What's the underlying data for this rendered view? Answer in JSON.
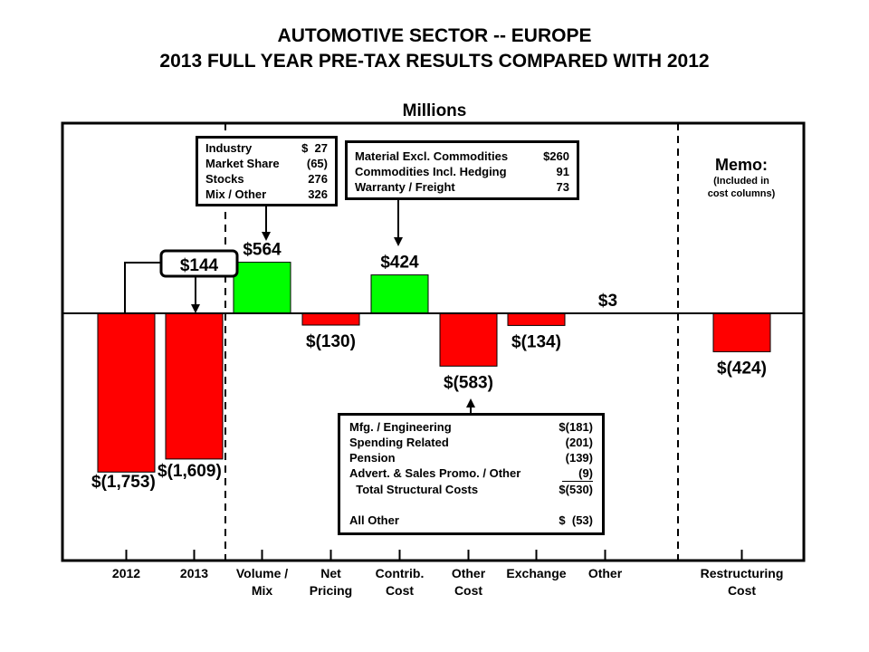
{
  "chart_data": {
    "type": "bar",
    "title": [
      "AUTOMOTIVE SECTOR -- EUROPE",
      "2013 FULL YEAR PRE-TAX RESULTS COMPARED WITH 2012"
    ],
    "ylabel": "Millions",
    "categories": [
      "2012",
      "2013",
      "Volume / Mix",
      "Net Pricing",
      "Contrib. Cost",
      "Other Cost",
      "Exchange",
      "Other",
      "Restructuring Cost"
    ],
    "category_lines": [
      [
        "2012"
      ],
      [
        "2013"
      ],
      [
        "Volume /",
        "Mix"
      ],
      [
        "Net",
        "Pricing"
      ],
      [
        "Contrib.",
        "Cost"
      ],
      [
        "Other",
        "Cost"
      ],
      [
        "Exchange"
      ],
      [
        "Other"
      ],
      [
        "Restructuring",
        "Cost"
      ]
    ],
    "values": [
      -1753,
      -1609,
      564,
      -130,
      424,
      -583,
      -134,
      3,
      -424
    ],
    "value_labels": [
      "$(1,753)",
      "$(1,609)",
      "$564",
      "$(130)",
      "$424",
      "$(583)",
      "$(134)",
      "$3",
      "$(424)"
    ],
    "colors": {
      "negative": "#ff0000",
      "positive": "#00ff00"
    },
    "grid": false,
    "change_label": "$144",
    "memo": {
      "title": "Memo:",
      "note": [
        "(Included in",
        "cost columns)"
      ]
    },
    "volume_box": [
      {
        "label": "Industry",
        "value": "$  27"
      },
      {
        "label": "Market Share",
        "value": "(65)"
      },
      {
        "label": "Stocks",
        "value": "276"
      },
      {
        "label": "Mix / Other",
        "value": "326"
      }
    ],
    "contrib_box": [
      {
        "label": "Material Excl. Commodities",
        "value": "$260"
      },
      {
        "label": "Commodities Incl. Hedging",
        "value": "91"
      },
      {
        "label": "Warranty / Freight",
        "value": "73"
      }
    ],
    "other_cost_box": [
      {
        "label": "Mfg. / Engineering",
        "value": "$(181)"
      },
      {
        "label": "Spending Related",
        "value": "(201)"
      },
      {
        "label": "Pension",
        "value": "(139)"
      },
      {
        "label": "Advert. & Sales Promo. / Other",
        "value": "(9)"
      },
      {
        "label": "  Total Structural Costs",
        "value": "$(530)"
      },
      {
        "label": "",
        "value": ""
      },
      {
        "label": "All Other",
        "value": "$  (53)"
      }
    ]
  }
}
